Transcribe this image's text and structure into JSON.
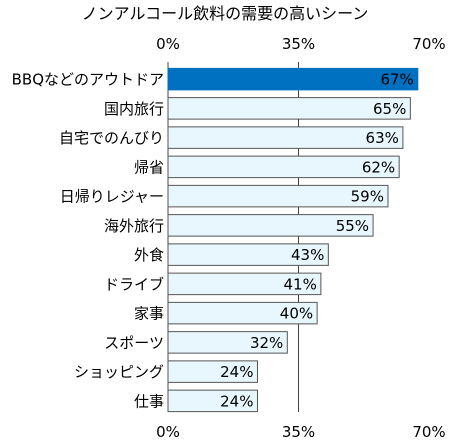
{
  "chart_data": {
    "type": "bar",
    "orientation": "horizontal",
    "title": "ノンアルコール飲料の需要の高いシーン",
    "categories": [
      "BBQなどのアウトドア",
      "国内旅行",
      "自宅でのんびり",
      "帰省",
      "日帰りレジャー",
      "海外旅行",
      "外食",
      "ドライブ",
      "家事",
      "スポーツ",
      "ショッピング",
      "仕事"
    ],
    "values": [
      67,
      65,
      63,
      62,
      59,
      55,
      43,
      41,
      40,
      32,
      24,
      24
    ],
    "value_labels": [
      "67%",
      "65%",
      "63%",
      "62%",
      "59%",
      "55%",
      "43%",
      "41%",
      "40%",
      "32%",
      "24%",
      "24%"
    ],
    "xlim": [
      0,
      70
    ],
    "ticks": [
      0,
      35,
      70
    ],
    "tick_labels": [
      "0%",
      "35%",
      "70%"
    ],
    "tick_positions": "top and bottom",
    "grid": "vertical at 35%",
    "highlight_index": 0,
    "colors": {
      "highlight_fill": "#0070C0",
      "highlight_text": "#ffffff",
      "bar_fill": "#E8F7FD",
      "bar_stroke": "#555555",
      "label_text": "#000000"
    }
  }
}
